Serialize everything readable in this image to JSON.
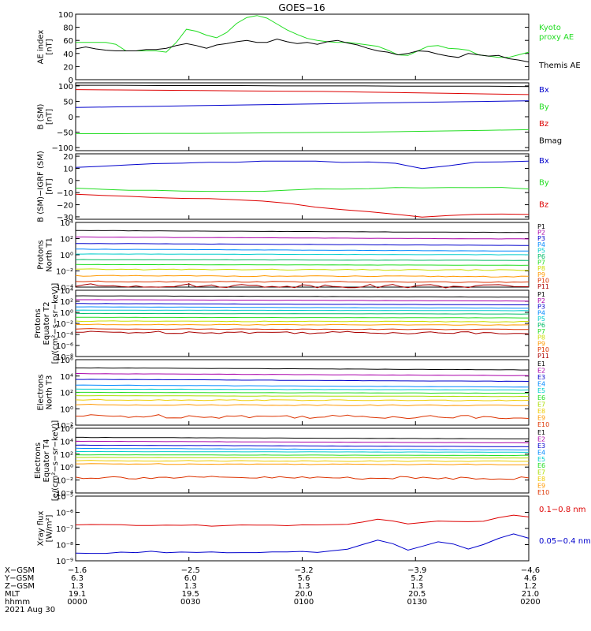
{
  "title": "GOES−16",
  "colors": {
    "black": "#000000",
    "red": "#dd0000",
    "green": "#22dd22",
    "blue": "#0000cc",
    "p": [
      "#000000",
      "#aa00aa",
      "#0000cc",
      "#0088ff",
      "#00cccc",
      "#00bb66",
      "#22dd22",
      "#ccdd00",
      "#ff9900",
      "#dd3300",
      "#aa0000"
    ],
    "e": [
      "#000000",
      "#aa00aa",
      "#0000cc",
      "#0088ff",
      "#00cccc",
      "#22dd22",
      "#aadd00",
      "#eecc00",
      "#ff9900",
      "#dd3300",
      "#aa0000"
    ]
  },
  "chart_data": [
    {
      "type": "line",
      "id": "ae",
      "ylabel": [
        "AE index",
        "[nT]"
      ],
      "ylim": [
        0,
        100
      ],
      "ticks": [
        "100",
        "80",
        "60",
        "40",
        "20",
        "0"
      ],
      "tickvals": [
        100,
        80,
        60,
        40,
        20,
        0
      ],
      "legend": [
        {
          "text": "Kyoto",
          "color": "green"
        },
        {
          "text": "proxy AE",
          "color": "green"
        },
        {
          "text": "Themis AE",
          "color": "black"
        }
      ],
      "series": [
        {
          "name": "Kyoto proxy AE",
          "color": "green",
          "values": [
            57,
            57,
            57,
            57,
            54,
            44,
            44,
            44,
            44,
            42,
            57,
            77,
            74,
            68,
            64,
            72,
            86,
            95,
            98,
            94,
            85,
            76,
            69,
            63,
            60,
            58,
            57,
            57,
            55,
            53,
            51,
            45,
            38,
            37,
            44,
            51,
            52,
            48,
            47,
            45,
            38,
            36,
            34,
            34,
            38,
            42
          ]
        },
        {
          "name": "Themis AE",
          "color": "black",
          "values": [
            47,
            50,
            47,
            45,
            44,
            44,
            44,
            46,
            46,
            48,
            52,
            55,
            52,
            48,
            53,
            55,
            58,
            60,
            57,
            57,
            62,
            58,
            55,
            57,
            54,
            58,
            60,
            56,
            53,
            48,
            44,
            42,
            38,
            40,
            44,
            43,
            39,
            36,
            34,
            40,
            38,
            36,
            37,
            32,
            30,
            27
          ]
        }
      ]
    },
    {
      "type": "line",
      "id": "bsm",
      "ylabel": [
        "B (SM)",
        "[nT]"
      ],
      "ylim": [
        -110,
        110
      ],
      "ticks": [
        "100",
        "50",
        "0",
        "−50",
        "−100"
      ],
      "tickvals": [
        100,
        50,
        0,
        -50,
        -100
      ],
      "legend": [
        {
          "text": "Bx",
          "color": "blue"
        },
        {
          "text": "By",
          "color": "green"
        },
        {
          "text": "Bz",
          "color": "red"
        },
        {
          "text": "Bmag",
          "color": "black"
        }
      ],
      "series": [
        {
          "name": "Bx",
          "color": "blue",
          "values": [
            30,
            32,
            34,
            36,
            38,
            40,
            42,
            44,
            46,
            48,
            50,
            52
          ]
        },
        {
          "name": "By",
          "color": "green",
          "values": [
            -55,
            -55,
            -54,
            -54,
            -53,
            -52,
            -51,
            -50,
            -48,
            -46,
            -44,
            -42
          ]
        },
        {
          "name": "Bz",
          "color": "red",
          "values": [
            88,
            87,
            86,
            85,
            84,
            83,
            82,
            80,
            78,
            76,
            74,
            72
          ]
        },
        {
          "name": "Bmag",
          "color": "black",
          "values": [
            102,
            102,
            101,
            101,
            101,
            100,
            100,
            100,
            99,
            99,
            99,
            98
          ]
        }
      ]
    },
    {
      "type": "line",
      "id": "bigrf",
      "ylabel": [
        "B (SM)−IGRF (SM)",
        "[nT]"
      ],
      "ylim": [
        -32,
        22
      ],
      "ticks": [
        "20",
        "10",
        "0",
        "−10",
        "−20",
        "−30"
      ],
      "tickvals": [
        20,
        10,
        0,
        -10,
        -20,
        -30
      ],
      "legend": [
        {
          "text": "Bx",
          "color": "blue"
        },
        {
          "text": "By",
          "color": "green"
        },
        {
          "text": "Bz",
          "color": "red"
        }
      ],
      "series": [
        {
          "name": "Bx",
          "color": "blue",
          "values": [
            11,
            12,
            13,
            14,
            14,
            15,
            15,
            16,
            16,
            16,
            15,
            15,
            14,
            10,
            12,
            15,
            15,
            16
          ]
        },
        {
          "name": "By",
          "color": "green",
          "values": [
            -6,
            -7,
            -8,
            -8,
            -9,
            -9,
            -9,
            -9,
            -8,
            -7,
            -7,
            -7,
            -6,
            -6,
            -6,
            -6,
            -6,
            -7
          ]
        },
        {
          "name": "Bz",
          "color": "red",
          "values": [
            -11,
            -12,
            -13,
            -14,
            -15,
            -15,
            -16,
            -17,
            -19,
            -22,
            -24,
            -26,
            -28,
            -30,
            -29,
            -28,
            -28,
            -28
          ]
        }
      ]
    },
    {
      "type": "line",
      "scale": "log",
      "id": "pn",
      "ylabel": [
        "Protons",
        "North T1"
      ],
      "ylim": [
        -4,
        4
      ],
      "ticks": [
        "10⁴",
        "10²",
        "10⁰",
        "10⁻²",
        "10⁻⁴"
      ],
      "tickvals": [
        4,
        2,
        0,
        -2,
        -4
      ],
      "legend_labels": [
        "P1",
        "P2",
        "P3",
        "P4",
        "P5",
        "P6",
        "P7",
        "P8",
        "P9",
        "P10",
        "P11"
      ],
      "levels": [
        3.0,
        2.2,
        1.4,
        0.7,
        0.1,
        -0.6,
        -1.2,
        -1.8,
        -2.6,
        -3.3,
        -3.8
      ]
    },
    {
      "type": "line",
      "scale": "log",
      "id": "pe",
      "ylabel": [
        "Protons",
        "Equator T2",
        "[p/(cm²−s−sr−keV)]"
      ],
      "ylim": [
        -8,
        4
      ],
      "ticks": [
        "10⁴",
        "10²",
        "10⁰",
        "10⁻²",
        "10⁻⁴",
        "10⁻⁶",
        "10⁻⁸"
      ],
      "tickvals": [
        4,
        2,
        0,
        -2,
        -4,
        -6,
        -8
      ],
      "legend_labels": [
        "P1",
        "P2",
        "P3",
        "P4",
        "P5",
        "P6",
        "P7",
        "P8",
        "P9",
        "P10",
        "P11"
      ],
      "levels": [
        3.0,
        2.3,
        1.6,
        1.0,
        0.4,
        -0.2,
        -0.9,
        -1.6,
        -2.2,
        -3.0,
        -3.6
      ]
    },
    {
      "type": "line",
      "scale": "log",
      "id": "en",
      "ylabel": [
        "Electrons",
        "North T3"
      ],
      "ylim": [
        -2,
        6
      ],
      "ticks": [
        "10⁶",
        "10⁴",
        "10²",
        "10⁰",
        "10⁻²"
      ],
      "tickvals": [
        6,
        4,
        2,
        0,
        -2
      ],
      "legend_labels": [
        "E1",
        "E2",
        "E3",
        "E4",
        "E5",
        "E6",
        "E7",
        "E8",
        "E9",
        "E10"
      ],
      "levels": [
        5.0,
        4.3,
        3.6,
        2.9,
        2.4,
        2.0,
        1.6,
        1.1,
        0.5,
        -0.9
      ]
    },
    {
      "type": "line",
      "scale": "log",
      "id": "ee",
      "ylabel": [
        "Electrons",
        "Equator T4",
        "[e/(cm²−s−sr−keV)]"
      ],
      "ylim": [
        -4,
        6
      ],
      "ticks": [
        "10⁶",
        "10⁴",
        "10²",
        "10⁰",
        "10⁻²",
        "10⁻⁴"
      ],
      "tickvals": [
        6,
        4,
        2,
        0,
        -2,
        -4
      ],
      "legend_labels": [
        "E1",
        "E2",
        "E3",
        "E4",
        "E5",
        "E6",
        "E7",
        "E8",
        "E9",
        "E10"
      ],
      "levels": [
        4.6,
        4.0,
        3.4,
        2.9,
        2.4,
        1.9,
        1.5,
        1.0,
        0.5,
        -1.6
      ]
    },
    {
      "type": "line",
      "scale": "log",
      "id": "xray",
      "ylabel": [
        "Xray flux",
        "[W/m²]"
      ],
      "ylim": [
        -9,
        -5
      ],
      "ticks": [
        "10⁻⁵",
        "10⁻⁶",
        "10⁻⁷",
        "10⁻⁸",
        "10⁻⁹"
      ],
      "tickvals": [
        -5,
        -6,
        -7,
        -8,
        -9
      ],
      "legend": [
        {
          "text": "0.1−0.8 nm",
          "color": "red"
        },
        {
          "text": "0.05−0.4 nm",
          "color": "blue"
        }
      ],
      "series": [
        {
          "name": "0.1-0.8 nm",
          "color": "red",
          "values": [
            -6.8,
            -6.78,
            -6.8,
            -6.79,
            -6.8,
            -6.8,
            -6.81,
            -6.8,
            -6.8,
            -6.82,
            -6.8,
            -6.81,
            -6.8,
            -6.82,
            -6.81,
            -6.8,
            -6.8,
            -6.78,
            -6.72,
            -6.6,
            -6.45,
            -6.55,
            -6.7,
            -6.62,
            -6.55,
            -6.58,
            -6.62,
            -6.55,
            -6.3,
            -6.15,
            -6.3
          ]
        },
        {
          "name": "0.05-0.4 nm",
          "color": "blue",
          "values": [
            -8.55,
            -8.5,
            -8.52,
            -8.48,
            -8.52,
            -8.45,
            -8.5,
            -8.47,
            -8.52,
            -8.46,
            -8.5,
            -8.48,
            -8.52,
            -8.46,
            -8.48,
            -8.45,
            -8.48,
            -8.4,
            -8.3,
            -8.0,
            -7.7,
            -7.95,
            -8.3,
            -8.05,
            -7.8,
            -8.0,
            -8.25,
            -8.0,
            -7.6,
            -7.35,
            -7.6
          ]
        }
      ]
    }
  ],
  "orbit": {
    "row_labels": [
      "X−GSM",
      "Y−GSM",
      "Z−GSM",
      "MLT",
      "hhmm"
    ],
    "columns": [
      [
        "−1.6",
        "6.3",
        "1.3",
        "19.1",
        "0000"
      ],
      [
        "−2.5",
        "6.0",
        "1.3",
        "19.5",
        "0030"
      ],
      [
        "−3.2",
        "5.6",
        "1.3",
        "20.0",
        "0100"
      ],
      [
        "−3.9",
        "5.2",
        "1.3",
        "20.5",
        "0130"
      ],
      [
        "−4.6",
        "4.6",
        "1.2",
        "21.0",
        "0200"
      ]
    ],
    "date": "2021 Aug 30"
  }
}
